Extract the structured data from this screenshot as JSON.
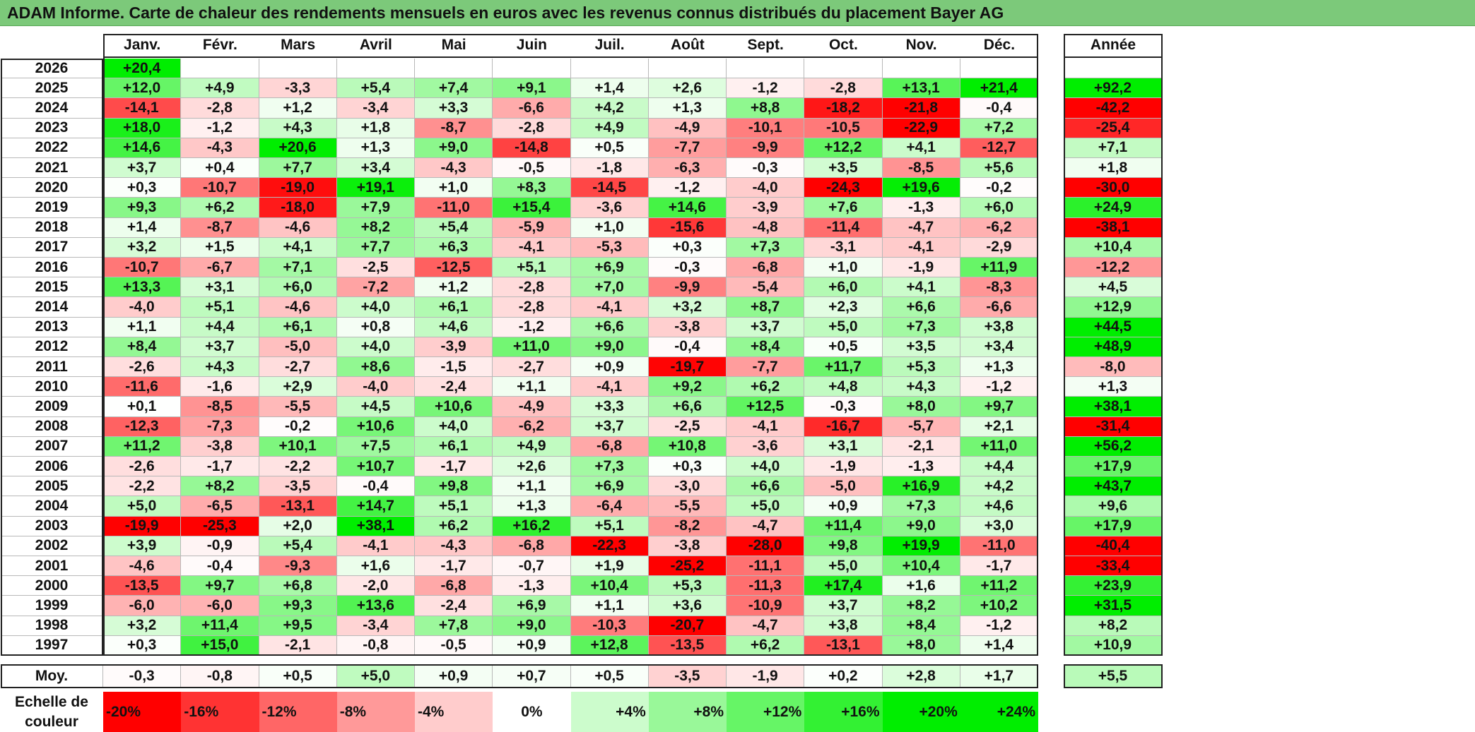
{
  "title": "ADAM Informe. Carte de chaleur des rendements mensuels en euros avec les revenus connus distribués du placement Bayer AG",
  "chart_data": {
    "type": "heatmap",
    "title": "ADAM Informe. Carte de chaleur des rendements mensuels en euros avec les revenus connus distribués du placement Bayer AG",
    "columns": [
      "Janv.",
      "Févr.",
      "Mars",
      "Avril",
      "Mai",
      "Juin",
      "Juil.",
      "Août",
      "Sept.",
      "Oct.",
      "Nov.",
      "Déc."
    ],
    "year_column_label": "Année",
    "rows": [
      {
        "year": "2026",
        "months": [
          "+20,4",
          "",
          "",
          "",
          "",
          "",
          "",
          "",
          "",
          "",
          "",
          ""
        ],
        "annual": ""
      },
      {
        "year": "2025",
        "months": [
          "+12,0",
          "+4,9",
          "-3,3",
          "+5,4",
          "+7,4",
          "+9,1",
          "+1,4",
          "+2,6",
          "-1,2",
          "-2,8",
          "+13,1",
          "+21,4"
        ],
        "annual": "+92,2"
      },
      {
        "year": "2024",
        "months": [
          "-14,1",
          "-2,8",
          "+1,2",
          "-3,4",
          "+3,3",
          "-6,6",
          "+4,2",
          "+1,3",
          "+8,8",
          "-18,2",
          "-21,8",
          "-0,4"
        ],
        "annual": "-42,2"
      },
      {
        "year": "2023",
        "months": [
          "+18,0",
          "-1,2",
          "+4,3",
          "+1,8",
          "-8,7",
          "-2,8",
          "+4,9",
          "-4,9",
          "-10,1",
          "-10,5",
          "-22,9",
          "+7,2"
        ],
        "annual": "-25,4"
      },
      {
        "year": "2022",
        "months": [
          "+14,6",
          "-4,3",
          "+20,6",
          "+1,3",
          "+9,0",
          "-14,8",
          "+0,5",
          "-7,7",
          "-9,9",
          "+12,2",
          "+4,1",
          "-12,7"
        ],
        "annual": "+7,1"
      },
      {
        "year": "2021",
        "months": [
          "+3,7",
          "+0,4",
          "+7,7",
          "+3,4",
          "-4,3",
          "-0,5",
          "-1,8",
          "-6,3",
          "-0,3",
          "+3,5",
          "-8,5",
          "+5,6"
        ],
        "annual": "+1,8"
      },
      {
        "year": "2020",
        "months": [
          "+0,3",
          "-10,7",
          "-19,0",
          "+19,1",
          "+1,0",
          "+8,3",
          "-14,5",
          "-1,2",
          "-4,0",
          "-24,3",
          "+19,6",
          "-0,2"
        ],
        "annual": "-30,0"
      },
      {
        "year": "2019",
        "months": [
          "+9,3",
          "+6,2",
          "-18,0",
          "+7,9",
          "-11,0",
          "+15,4",
          "-3,6",
          "+14,6",
          "-3,9",
          "+7,6",
          "-1,3",
          "+6,0"
        ],
        "annual": "+24,9"
      },
      {
        "year": "2018",
        "months": [
          "+1,4",
          "-8,7",
          "-4,6",
          "+8,2",
          "+5,4",
          "-5,9",
          "+1,0",
          "-15,6",
          "-4,8",
          "-11,4",
          "-4,7",
          "-6,2"
        ],
        "annual": "-38,1"
      },
      {
        "year": "2017",
        "months": [
          "+3,2",
          "+1,5",
          "+4,1",
          "+7,7",
          "+6,3",
          "-4,1",
          "-5,3",
          "+0,3",
          "+7,3",
          "-3,1",
          "-4,1",
          "-2,9"
        ],
        "annual": "+10,4"
      },
      {
        "year": "2016",
        "months": [
          "-10,7",
          "-6,7",
          "+7,1",
          "-2,5",
          "-12,5",
          "+5,1",
          "+6,9",
          "-0,3",
          "-6,8",
          "+1,0",
          "-1,9",
          "+11,9"
        ],
        "annual": "-12,2"
      },
      {
        "year": "2015",
        "months": [
          "+13,3",
          "+3,1",
          "+6,0",
          "-7,2",
          "+1,2",
          "-2,8",
          "+7,0",
          "-9,9",
          "-5,4",
          "+6,0",
          "+4,1",
          "-8,3"
        ],
        "annual": "+4,5"
      },
      {
        "year": "2014",
        "months": [
          "-4,0",
          "+5,1",
          "-4,6",
          "+4,0",
          "+6,1",
          "-2,8",
          "-4,1",
          "+3,2",
          "+8,7",
          "+2,3",
          "+6,6",
          "-6,6"
        ],
        "annual": "+12,9"
      },
      {
        "year": "2013",
        "months": [
          "+1,1",
          "+4,4",
          "+6,1",
          "+0,8",
          "+4,6",
          "-1,2",
          "+6,6",
          "-3,8",
          "+3,7",
          "+5,0",
          "+7,3",
          "+3,8"
        ],
        "annual": "+44,5"
      },
      {
        "year": "2012",
        "months": [
          "+8,4",
          "+3,7",
          "-5,0",
          "+4,0",
          "-3,9",
          "+11,0",
          "+9,0",
          "-0,4",
          "+8,4",
          "+0,5",
          "+3,5",
          "+3,4"
        ],
        "annual": "+48,9"
      },
      {
        "year": "2011",
        "months": [
          "-2,6",
          "+4,3",
          "-2,7",
          "+8,6",
          "-1,5",
          "-2,7",
          "+0,9",
          "-19,7",
          "-7,7",
          "+11,7",
          "+5,3",
          "+1,3"
        ],
        "annual": "-8,0"
      },
      {
        "year": "2010",
        "months": [
          "-11,6",
          "-1,6",
          "+2,9",
          "-4,0",
          "-2,4",
          "+1,1",
          "-4,1",
          "+9,2",
          "+6,2",
          "+4,8",
          "+4,3",
          "-1,2"
        ],
        "annual": "+1,3"
      },
      {
        "year": "2009",
        "months": [
          "+0,1",
          "-8,5",
          "-5,5",
          "+4,5",
          "+10,6",
          "-4,9",
          "+3,3",
          "+6,6",
          "+12,5",
          "-0,3",
          "+8,0",
          "+9,7"
        ],
        "annual": "+38,1"
      },
      {
        "year": "2008",
        "months": [
          "-12,3",
          "-7,3",
          "-0,2",
          "+10,6",
          "+4,0",
          "-6,2",
          "+3,7",
          "-2,5",
          "-4,1",
          "-16,7",
          "-5,7",
          "+2,1"
        ],
        "annual": "-31,4"
      },
      {
        "year": "2007",
        "months": [
          "+11,2",
          "-3,8",
          "+10,1",
          "+7,5",
          "+6,1",
          "+4,9",
          "-6,8",
          "+10,8",
          "-3,6",
          "+3,1",
          "-2,1",
          "+11,0"
        ],
        "annual": "+56,2"
      },
      {
        "year": "2006",
        "months": [
          "-2,6",
          "-1,7",
          "-2,2",
          "+10,7",
          "-1,7",
          "+2,6",
          "+7,3",
          "+0,3",
          "+4,0",
          "-1,9",
          "-1,3",
          "+4,4"
        ],
        "annual": "+17,9"
      },
      {
        "year": "2005",
        "months": [
          "-2,2",
          "+8,2",
          "-3,5",
          "-0,4",
          "+9,8",
          "+1,1",
          "+6,9",
          "-3,0",
          "+6,6",
          "-5,0",
          "+16,9",
          "+4,2"
        ],
        "annual": "+43,7"
      },
      {
        "year": "2004",
        "months": [
          "+5,0",
          "-6,5",
          "-13,1",
          "+14,7",
          "+5,1",
          "+1,3",
          "-6,4",
          "-5,5",
          "+5,0",
          "+0,9",
          "+7,3",
          "+4,6"
        ],
        "annual": "+9,6"
      },
      {
        "year": "2003",
        "months": [
          "-19,9",
          "-25,3",
          "+2,0",
          "+38,1",
          "+6,2",
          "+16,2",
          "+5,1",
          "-8,2",
          "-4,7",
          "+11,4",
          "+9,0",
          "+3,0"
        ],
        "annual": "+17,9"
      },
      {
        "year": "2002",
        "months": [
          "+3,9",
          "-0,9",
          "+5,4",
          "-4,1",
          "-4,3",
          "-6,8",
          "-22,3",
          "-3,8",
          "-28,0",
          "+9,8",
          "+19,9",
          "-11,0"
        ],
        "annual": "-40,4"
      },
      {
        "year": "2001",
        "months": [
          "-4,6",
          "-0,4",
          "-9,3",
          "+1,6",
          "-1,7",
          "-0,7",
          "+1,9",
          "-25,2",
          "-11,1",
          "+5,0",
          "+10,4",
          "-1,7"
        ],
        "annual": "-33,4"
      },
      {
        "year": "2000",
        "months": [
          "-13,5",
          "+9,7",
          "+6,8",
          "-2,0",
          "-6,8",
          "-1,3",
          "+10,4",
          "+5,3",
          "-11,3",
          "+17,4",
          "+1,6",
          "+11,2"
        ],
        "annual": "+23,9"
      },
      {
        "year": "1999",
        "months": [
          "-6,0",
          "-6,0",
          "+9,3",
          "+13,6",
          "-2,4",
          "+6,9",
          "+1,1",
          "+3,6",
          "-10,9",
          "+3,7",
          "+8,2",
          "+10,2"
        ],
        "annual": "+31,5"
      },
      {
        "year": "1998",
        "months": [
          "+3,2",
          "+11,4",
          "+9,5",
          "-3,4",
          "+7,8",
          "+9,0",
          "-10,3",
          "-20,7",
          "-4,7",
          "+3,8",
          "+8,4",
          "-1,2"
        ],
        "annual": "+8,2"
      },
      {
        "year": "1997",
        "months": [
          "+0,3",
          "+15,0",
          "-2,1",
          "-0,8",
          "-0,5",
          "+0,9",
          "+12,8",
          "-13,5",
          "+6,2",
          "-13,1",
          "+8,0",
          "+1,4"
        ],
        "annual": "+10,9"
      }
    ],
    "average": {
      "label": "Moy.",
      "months": [
        "-0,3",
        "-0,8",
        "+0,5",
        "+5,0",
        "+0,9",
        "+0,7",
        "+0,5",
        "-3,5",
        "-1,9",
        "+0,2",
        "+2,8",
        "+1,7"
      ],
      "annual": "+5,5"
    },
    "color_scale": {
      "label_line1": "Echelle de",
      "label_line2": "couleur",
      "stops": [
        "-20%",
        "-16%",
        "-12%",
        "-8%",
        "-4%",
        "0%",
        "+4%",
        "+8%",
        "+12%",
        "+16%",
        "+20%",
        "+24%"
      ],
      "negative_color": "#ff0000",
      "neutral_color": "#ffffff",
      "positive_color": "#00ee00"
    }
  }
}
